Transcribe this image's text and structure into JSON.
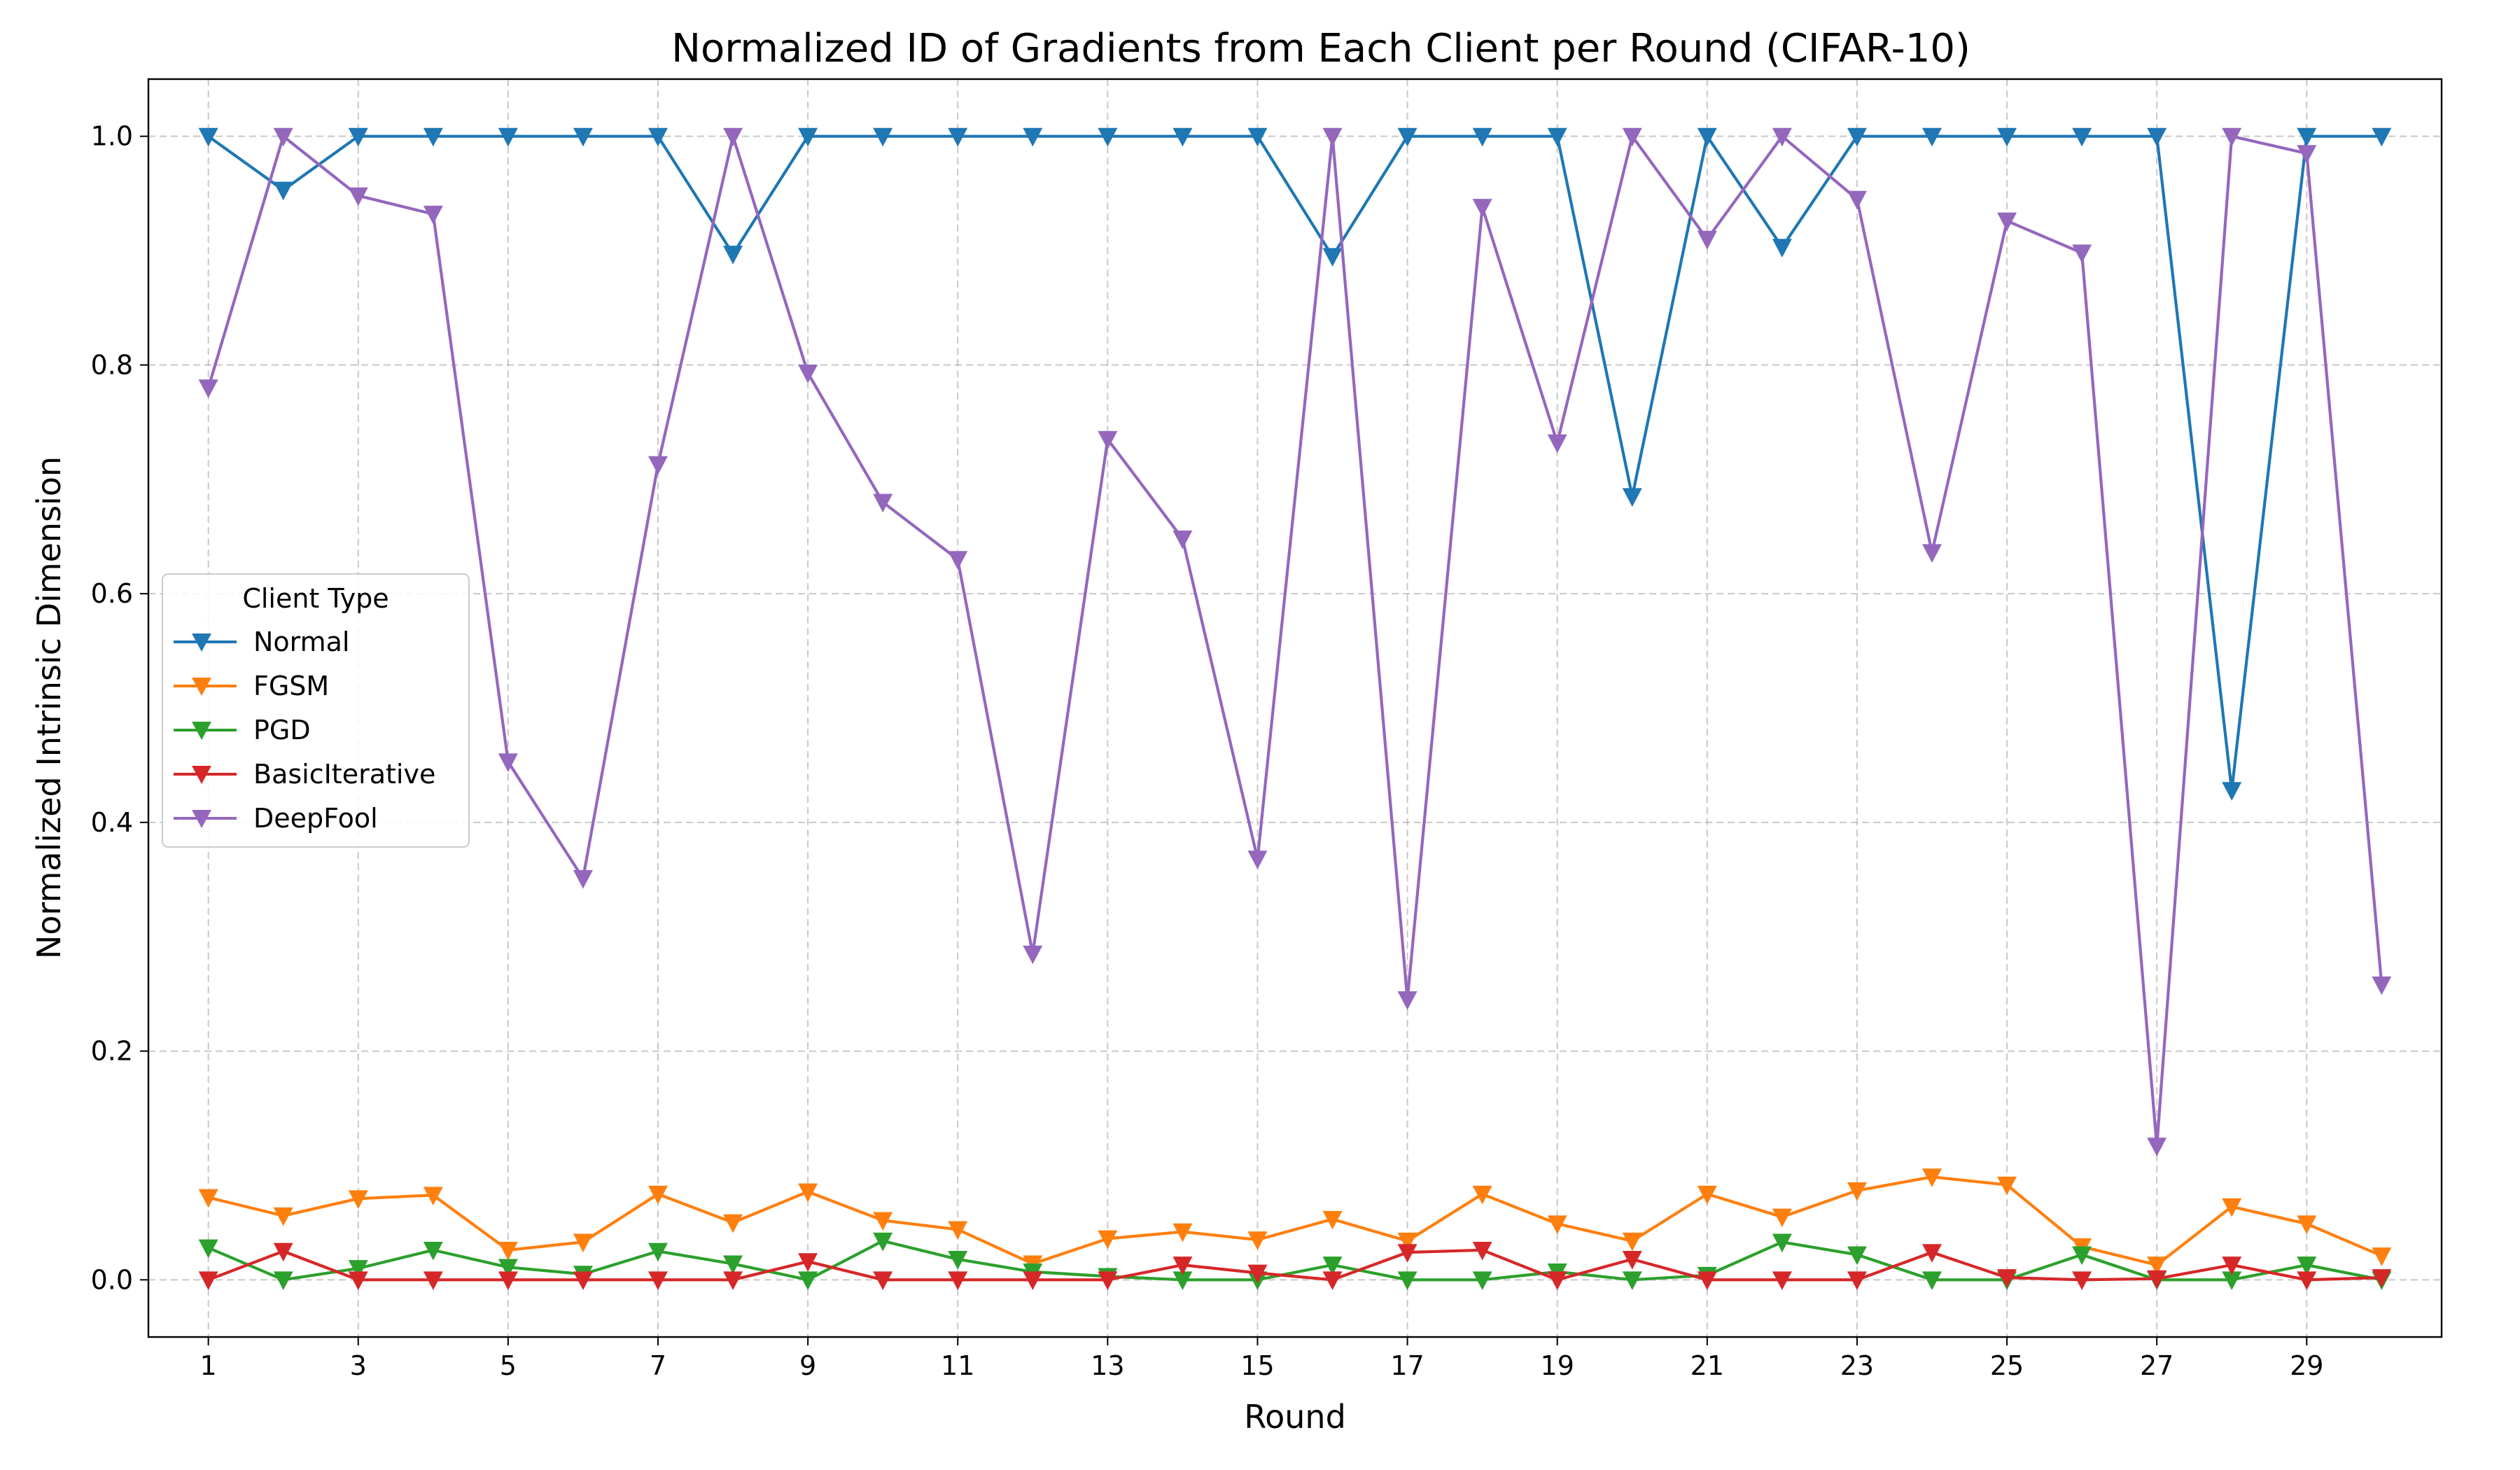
{
  "chart_data": {
    "type": "line",
    "title": "Normalized ID of Gradients from Each Client per Round (CIFAR-10)",
    "xlabel": "Round",
    "ylabel": "Normalized Intrinsic Dimension",
    "xlim": [
      0.2,
      30.8
    ],
    "ylim": [
      -0.05,
      1.05
    ],
    "xticks": [
      1,
      3,
      5,
      7,
      9,
      11,
      13,
      15,
      17,
      19,
      21,
      23,
      25,
      27,
      29
    ],
    "yticks": [
      0.0,
      0.2,
      0.4,
      0.6,
      0.8,
      1.0
    ],
    "ytick_labels": [
      "0.0",
      "0.2",
      "0.4",
      "0.6",
      "0.8",
      "1.0"
    ],
    "grid": true,
    "marker": "triangle-down",
    "legend": {
      "title": "Client Type",
      "position": "center-left"
    },
    "x": [
      1,
      2,
      3,
      4,
      5,
      6,
      7,
      8,
      9,
      10,
      11,
      12,
      13,
      14,
      15,
      16,
      17,
      18,
      19,
      20,
      21,
      22,
      23,
      24,
      25,
      26,
      27,
      28,
      29,
      30
    ],
    "series": [
      {
        "name": "Normal",
        "color": "#1f77b4",
        "values": [
          1.0,
          0.953,
          1.0,
          1.0,
          1.0,
          1.0,
          1.0,
          0.897,
          1.0,
          1.0,
          1.0,
          1.0,
          1.0,
          1.0,
          1.0,
          0.895,
          1.0,
          1.0,
          1.0,
          0.685,
          1.0,
          0.903,
          1.0,
          1.0,
          1.0,
          1.0,
          1.0,
          0.428,
          1.0,
          1.0
        ]
      },
      {
        "name": "FGSM",
        "color": "#ff7f0e",
        "values": [
          0.072,
          0.056,
          0.071,
          0.074,
          0.026,
          0.033,
          0.075,
          0.05,
          0.077,
          0.052,
          0.044,
          0.014,
          0.036,
          0.042,
          0.035,
          0.053,
          0.034,
          0.075,
          0.049,
          0.034,
          0.075,
          0.055,
          0.078,
          0.09,
          0.083,
          0.029,
          0.013,
          0.064,
          0.049,
          0.021
        ]
      },
      {
        "name": "PGD",
        "color": "#2ca02c",
        "values": [
          0.028,
          0.0,
          0.01,
          0.026,
          0.011,
          0.005,
          0.025,
          0.014,
          0.0,
          0.034,
          0.018,
          0.007,
          0.003,
          0.0,
          0.0,
          0.013,
          0.0,
          0.0,
          0.007,
          0.0,
          0.004,
          0.033,
          0.022,
          0.0,
          0.0,
          0.022,
          0.0,
          0.0,
          0.013,
          0.0
        ]
      },
      {
        "name": "BasicIterative",
        "color": "#d62728",
        "values": [
          0.0,
          0.025,
          0.0,
          0.0,
          0.0,
          0.0,
          0.0,
          0.0,
          0.016,
          0.0,
          0.0,
          0.0,
          0.0,
          0.013,
          0.006,
          0.0,
          0.024,
          0.026,
          0.0,
          0.018,
          0.0,
          0.0,
          0.0,
          0.024,
          0.002,
          0.0,
          0.001,
          0.013,
          0.0,
          0.002
        ]
      },
      {
        "name": "DeepFool",
        "color": "#9467bd",
        "values": [
          0.78,
          1.0,
          0.948,
          0.932,
          0.453,
          0.351,
          0.713,
          1.0,
          0.793,
          0.68,
          0.63,
          0.285,
          0.735,
          0.648,
          0.368,
          1.0,
          0.245,
          0.938,
          0.732,
          1.0,
          0.91,
          1.0,
          0.945,
          0.636,
          0.926,
          0.898,
          0.117,
          1.0,
          0.985,
          0.258
        ]
      }
    ]
  }
}
